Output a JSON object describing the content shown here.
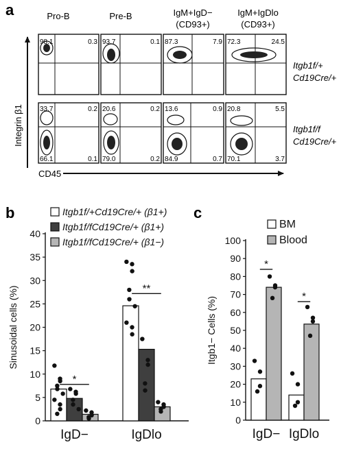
{
  "panel_labels": {
    "a": "a",
    "b": "b",
    "c": "c"
  },
  "colors": {
    "ink": "#111111",
    "dark_bar": "#3f3f3f",
    "light_bar": "#b5b5b5",
    "white_bar": "#ffffff"
  },
  "panel_a": {
    "column_headers": [
      {
        "line1": "Pro-B",
        "line2": ""
      },
      {
        "line1": "Pre-B",
        "line2": ""
      },
      {
        "line1": "IgM+IgD−",
        "line2": "(CD93+)"
      },
      {
        "line1": "IgM+IgDlo",
        "line2": "(CD93+)"
      }
    ],
    "row_labels": [
      {
        "line1": "Itgb1f/+",
        "line2": "Cd19Cre/+"
      },
      {
        "line1": "Itgb1f/f",
        "line2": "Cd19Cre/+"
      }
    ],
    "y_axis_label": "Integrin β1",
    "x_axis_label": "CD45",
    "row1_quadrants": [
      {
        "ul": "98.1",
        "ur": "0.3"
      },
      {
        "ul": "93.7",
        "ur": "0.1"
      },
      {
        "ul": "87.3",
        "ur": "7.9"
      },
      {
        "ul": "72.3",
        "ur": "24.5"
      }
    ],
    "row2_quadrants": [
      {
        "ul": "33.7",
        "ur": "0.2",
        "ll": "66.1",
        "lr": "0.1"
      },
      {
        "ul": "20.6",
        "ur": "0.2",
        "ll": "79.0",
        "lr": "0.2"
      },
      {
        "ul": "13.6",
        "ur": "0.9",
        "ll": "84.9",
        "lr": "0.7"
      },
      {
        "ul": "20.8",
        "ur": "5.5",
        "ll": "70.1",
        "lr": "3.7"
      }
    ]
  },
  "chart_data": [
    {
      "type": "bar",
      "panel": "b",
      "ylabel": "Sinusoidal cells (%)",
      "ylim": [
        0,
        40
      ],
      "yticks": [
        "0",
        "5",
        "10",
        "15",
        "20",
        "25",
        "30",
        "35",
        "40"
      ],
      "categories": [
        "IgD−",
        "IgDlo"
      ],
      "legend": [
        "Itgb1f/+Cd19Cre/+ (β1+)",
        "Itgb1f/fCd19Cre/+ (β1+)",
        "Itgb1f/fCd19Cre/+ (β1−)"
      ],
      "series": [
        {
          "values": [
            6.8,
            24.6
          ],
          "points": [
            [
              11.8,
              9,
              8.5,
              7.5,
              6.8,
              5.8,
              4.5,
              3.5,
              2.5,
              1.5
            ],
            [
              34,
              33.5,
              32,
              28,
              26,
              24.5,
              21,
              20,
              18.5
            ]
          ]
        },
        {
          "values": [
            4.8,
            15.3
          ],
          "points": [
            [
              6.8,
              6.2,
              5.8,
              4.5,
              3.5,
              2.5
            ],
            [
              17.5,
              13,
              12,
              8,
              6.5
            ]
          ]
        },
        {
          "values": [
            1.4,
            3.0
          ],
          "points": [
            [
              2.2,
              1.8,
              1.2,
              0.8,
              0.5
            ],
            [
              4,
              3.5,
              3,
              2.5,
              2
            ]
          ]
        }
      ],
      "significance": [
        {
          "label": "*",
          "y": 7.8
        },
        {
          "label": "**",
          "y": 27.2
        }
      ]
    },
    {
      "type": "bar",
      "panel": "c",
      "ylabel": "Itgb1− Cells (%)",
      "ylim": [
        0,
        100
      ],
      "yticks": [
        "0",
        "10",
        "20",
        "30",
        "40",
        "50",
        "60",
        "70",
        "80",
        "90",
        "100"
      ],
      "categories": [
        "IgD−",
        "IgDlo"
      ],
      "legend": [
        "BM",
        "Blood"
      ],
      "series": [
        {
          "values": [
            23,
            14
          ],
          "points": [
            [
              33,
              27,
              19,
              16
            ],
            [
              26,
              20,
              10,
              8
            ]
          ]
        },
        {
          "values": [
            74,
            53.5
          ],
          "points": [
            [
              80,
              75,
              74,
              68
            ],
            [
              63,
              57,
              55,
              47
            ]
          ]
        }
      ],
      "significance": [
        {
          "label": "*",
          "y": 84
        },
        {
          "label": "*",
          "y": 66
        }
      ]
    }
  ]
}
